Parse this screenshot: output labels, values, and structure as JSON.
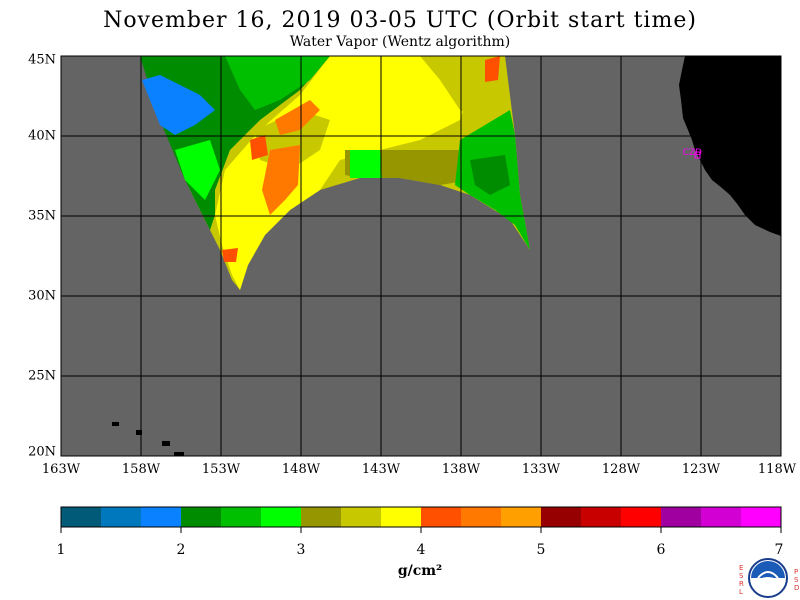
{
  "title": "November 16, 2019  03-05 UTC  (Orbit start time)",
  "subtitle": "Water Vapor (Wentz algorithm)",
  "lat_labels": [
    "45N",
    "40N",
    "35N",
    "30N",
    "25N",
    "20N"
  ],
  "lat_values": [
    45,
    40,
    35,
    30,
    25,
    20
  ],
  "lon_labels": [
    "163W",
    "158W",
    "153W",
    "148W",
    "143W",
    "138W",
    "133W",
    "128W",
    "123W",
    "118W"
  ],
  "lon_values": [
    -163,
    -158,
    -153,
    -148,
    -143,
    -138,
    -133,
    -128,
    -123,
    -118
  ],
  "station_label": "CZD",
  "colorbar": {
    "tick_labels": [
      "1",
      "2",
      "3",
      "4",
      "5",
      "6",
      "7"
    ],
    "units": "g/cm²",
    "colors": [
      "#005a78",
      "#0078be",
      "#0a82ff",
      "#008c00",
      "#00be00",
      "#00ff00",
      "#969600",
      "#c8c800",
      "#ffff00",
      "#ff5000",
      "#ff7800",
      "#ffa000",
      "#960000",
      "#c80000",
      "#ff0000",
      "#a000a0",
      "#d200d2",
      "#ff00ff"
    ]
  },
  "colors": {
    "ocean_no_data": "#646464",
    "land": "#000000",
    "grid": "#000000",
    "station": "#ff00ff"
  },
  "logo": {
    "left_letters": "ESRL",
    "right_letters": "PSD",
    "name": "NOAA"
  }
}
